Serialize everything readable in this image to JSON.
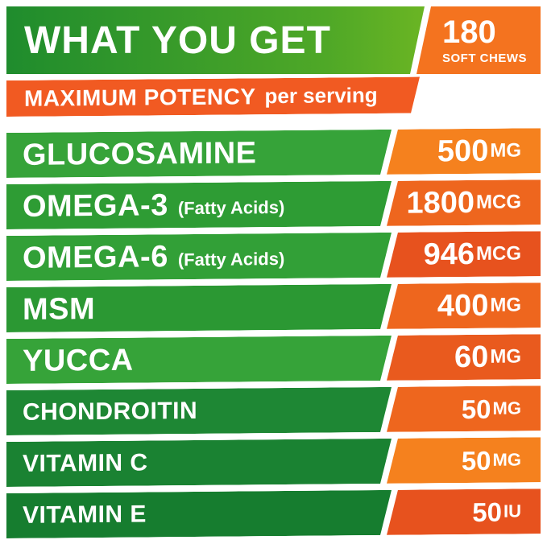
{
  "colors": {
    "green": "#2f9b34",
    "green_dark": "#167d2f",
    "green_light": "#8bc41f",
    "orange": "#f5811e",
    "orange_dark": "#e7521e",
    "text": "#ffffff"
  },
  "header": {
    "title": "WHAT YOU GET",
    "badge": {
      "count": "180",
      "label": "SOFT CHEWS"
    }
  },
  "subheader": {
    "bold": "MAXIMUM POTENCY",
    "regular": "per serving"
  },
  "rows": [
    {
      "name": "GLUCOSAMINE",
      "note": "",
      "value": "500",
      "unit": "MG"
    },
    {
      "name": "OMEGA-3",
      "note": "(Fatty Acids)",
      "value": "1800",
      "unit": "MCG"
    },
    {
      "name": "OMEGA-6",
      "note": "(Fatty Acids)",
      "value": "946",
      "unit": "MCG"
    },
    {
      "name": "MSM",
      "note": "",
      "value": "400",
      "unit": "MG"
    },
    {
      "name": "YUCCA",
      "note": "",
      "value": "60",
      "unit": "MG"
    },
    {
      "name": "CHONDROITIN",
      "note": "",
      "value": "50",
      "unit": "MG"
    },
    {
      "name": "VITAMIN C",
      "note": "",
      "value": "50",
      "unit": "MG"
    },
    {
      "name": "VITAMIN E",
      "note": "",
      "value": "50",
      "unit": "IU"
    }
  ]
}
